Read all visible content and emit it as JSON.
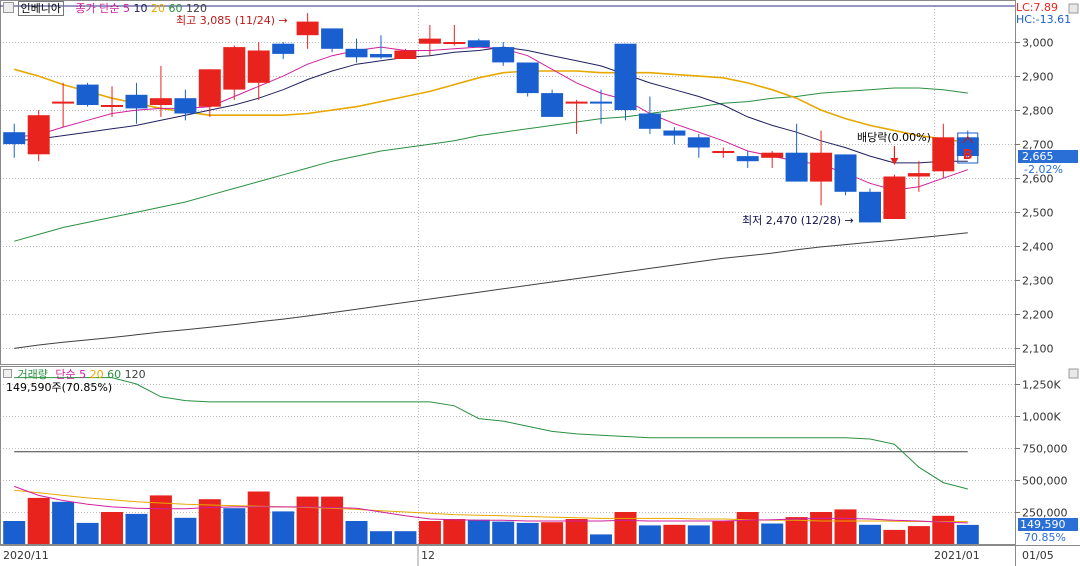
{
  "price_panel": {
    "stock_name": "인베니아",
    "indicator_label": "종가 단순",
    "ma_periods": [
      "5",
      "10",
      "20",
      "60",
      "120"
    ],
    "lc_label": "LC:7.89",
    "hc_label": "HC:-13.61",
    "current_price_label": "2,665",
    "change_pct_label": "-2.02%",
    "high_annotation": "최고 3,085 (11/24)",
    "low_annotation": "최저 2,470 (12/28)",
    "dividend_annotation": "배당락(0.00%)",
    "signal_marker": "B"
  },
  "volume_panel": {
    "indicator_label": "거래량",
    "ma_label": "단순",
    "ma_periods": [
      "5",
      "20",
      "60",
      "120"
    ],
    "summary": "149,590주(70.85%)",
    "current_volume_label": "149,590",
    "current_pct_label": "70.85%"
  },
  "date_labels": {
    "left": "2020/11",
    "mid": "12",
    "right": "2021/01",
    "last": "01/05"
  },
  "colors": {
    "up": "#e8231e",
    "down": "#1a5fcf",
    "ma5": "#d020a0",
    "ma10": "#202060",
    "ma20": "#e8a800",
    "ma60": "#2a9040",
    "ma120": "#404040",
    "price_highlight": "#2a6fd6"
  },
  "chart_data": [
    {
      "type": "candlestick",
      "y_ticks": [
        "3,000",
        "2,900",
        "2,800",
        "2,700",
        "2,600",
        "2,500",
        "2,400",
        "2,300",
        "2,200",
        "2,100"
      ],
      "ylim": [
        2060,
        3100
      ],
      "candles": [
        {
          "o": 2735,
          "h": 2760,
          "l": 2660,
          "c": 2700
        },
        {
          "o": 2670,
          "h": 2800,
          "l": 2650,
          "c": 2785
        },
        {
          "o": 2820,
          "h": 2880,
          "l": 2750,
          "c": 2825
        },
        {
          "o": 2875,
          "h": 2880,
          "l": 2810,
          "c": 2815
        },
        {
          "o": 2815,
          "h": 2870,
          "l": 2780,
          "c": 2815
        },
        {
          "o": 2845,
          "h": 2880,
          "l": 2760,
          "c": 2805
        },
        {
          "o": 2815,
          "h": 2930,
          "l": 2780,
          "c": 2835
        },
        {
          "o": 2835,
          "h": 2860,
          "l": 2770,
          "c": 2790
        },
        {
          "o": 2810,
          "h": 2920,
          "l": 2780,
          "c": 2920
        },
        {
          "o": 2860,
          "h": 2990,
          "l": 2830,
          "c": 2985
        },
        {
          "o": 2880,
          "h": 3000,
          "l": 2830,
          "c": 2975
        },
        {
          "o": 2995,
          "h": 3000,
          "l": 2950,
          "c": 2965
        },
        {
          "o": 3020,
          "h": 3085,
          "l": 2980,
          "c": 3060
        },
        {
          "o": 3040,
          "h": 3040,
          "l": 2970,
          "c": 2980
        },
        {
          "o": 2980,
          "h": 3010,
          "l": 2940,
          "c": 2955
        },
        {
          "o": 2965,
          "h": 3020,
          "l": 2950,
          "c": 2955
        },
        {
          "o": 2950,
          "h": 2980,
          "l": 2950,
          "c": 2975
        },
        {
          "o": 2995,
          "h": 3050,
          "l": 2960,
          "c": 3010
        },
        {
          "o": 3000,
          "h": 3050,
          "l": 2990,
          "c": 3000
        },
        {
          "o": 3005,
          "h": 3010,
          "l": 2985,
          "c": 2985
        },
        {
          "o": 2985,
          "h": 3000,
          "l": 2930,
          "c": 2940
        },
        {
          "o": 2940,
          "h": 2940,
          "l": 2840,
          "c": 2850
        },
        {
          "o": 2850,
          "h": 2860,
          "l": 2780,
          "c": 2780
        },
        {
          "o": 2820,
          "h": 2830,
          "l": 2730,
          "c": 2825
        },
        {
          "o": 2825,
          "h": 2860,
          "l": 2760,
          "c": 2820
        },
        {
          "o": 2995,
          "h": 2995,
          "l": 2770,
          "c": 2800
        },
        {
          "o": 2790,
          "h": 2840,
          "l": 2730,
          "c": 2745
        },
        {
          "o": 2740,
          "h": 2750,
          "l": 2700,
          "c": 2725
        },
        {
          "o": 2720,
          "h": 2730,
          "l": 2660,
          "c": 2690
        },
        {
          "o": 2680,
          "h": 2690,
          "l": 2660,
          "c": 2680
        },
        {
          "o": 2665,
          "h": 2680,
          "l": 2630,
          "c": 2650
        },
        {
          "o": 2660,
          "h": 2680,
          "l": 2630,
          "c": 2675
        },
        {
          "o": 2675,
          "h": 2760,
          "l": 2600,
          "c": 2590
        },
        {
          "o": 2590,
          "h": 2740,
          "l": 2520,
          "c": 2675
        },
        {
          "o": 2670,
          "h": 2670,
          "l": 2550,
          "c": 2560
        },
        {
          "o": 2560,
          "h": 2570,
          "l": 2470,
          "c": 2470
        },
        {
          "o": 2480,
          "h": 2610,
          "l": 2480,
          "c": 2605
        },
        {
          "o": 2605,
          "h": 2650,
          "l": 2560,
          "c": 2615
        },
        {
          "o": 2620,
          "h": 2760,
          "l": 2600,
          "c": 2720
        },
        {
          "o": 2720,
          "h": 2740,
          "l": 2660,
          "c": 2665
        }
      ],
      "ma5": [
        2720,
        2728,
        2750,
        2770,
        2790,
        2800,
        2805,
        2805,
        2810,
        2840,
        2870,
        2900,
        2935,
        2960,
        2975,
        2985,
        2975,
        2975,
        2980,
        2985,
        2980,
        2960,
        2920,
        2880,
        2850,
        2830,
        2790,
        2760,
        2735,
        2710,
        2680,
        2665,
        2650,
        2640,
        2615,
        2585,
        2565,
        2575,
        2600,
        2625
      ],
      "ma10": [
        2710,
        2715,
        2725,
        2735,
        2745,
        2755,
        2770,
        2785,
        2800,
        2815,
        2835,
        2860,
        2890,
        2915,
        2935,
        2945,
        2955,
        2960,
        2970,
        2975,
        2985,
        2975,
        2960,
        2945,
        2930,
        2905,
        2880,
        2860,
        2840,
        2815,
        2780,
        2755,
        2735,
        2710,
        2690,
        2665,
        2645,
        2645,
        2650,
        2650
      ],
      "ma20": [
        2920,
        2900,
        2875,
        2855,
        2835,
        2820,
        2805,
        2795,
        2785,
        2785,
        2785,
        2785,
        2790,
        2800,
        2810,
        2825,
        2840,
        2855,
        2875,
        2895,
        2910,
        2915,
        2915,
        2915,
        2910,
        2910,
        2910,
        2905,
        2900,
        2895,
        2880,
        2860,
        2835,
        2800,
        2775,
        2755,
        2740,
        2725,
        2715,
        2705
      ],
      "ma60": [
        2415,
        2435,
        2455,
        2470,
        2485,
        2500,
        2515,
        2530,
        2550,
        2570,
        2590,
        2610,
        2630,
        2650,
        2665,
        2680,
        2690,
        2700,
        2710,
        2725,
        2735,
        2745,
        2755,
        2765,
        2775,
        2780,
        2790,
        2800,
        2810,
        2820,
        2825,
        2835,
        2840,
        2850,
        2855,
        2860,
        2865,
        2865,
        2860,
        2850
      ],
      "ma120": [
        2100,
        2110,
        2118,
        2125,
        2132,
        2140,
        2148,
        2155,
        2162,
        2170,
        2178,
        2186,
        2195,
        2205,
        2215,
        2225,
        2235,
        2245,
        2255,
        2265,
        2275,
        2285,
        2295,
        2305,
        2315,
        2325,
        2335,
        2345,
        2355,
        2365,
        2372,
        2380,
        2390,
        2398,
        2405,
        2412,
        2418,
        2425,
        2432,
        2440
      ]
    },
    {
      "type": "bar",
      "y_ticks": [
        "1,250K",
        "1,000K",
        "750,000",
        "500,000",
        "250,000"
      ],
      "ylim": [
        0,
        1375000
      ],
      "volumes": [
        180000,
        360000,
        330000,
        165000,
        250000,
        235000,
        380000,
        205000,
        350000,
        280000,
        410000,
        255000,
        370000,
        370000,
        180000,
        100000,
        100000,
        180000,
        195000,
        190000,
        175000,
        165000,
        170000,
        195000,
        75000,
        250000,
        145000,
        150000,
        145000,
        180000,
        250000,
        160000,
        210000,
        250000,
        270000,
        150000,
        110000,
        140000,
        220000,
        149590
      ],
      "up": [
        false,
        true,
        false,
        false,
        true,
        false,
        true,
        false,
        true,
        false,
        true,
        false,
        true,
        true,
        false,
        false,
        false,
        true,
        true,
        false,
        false,
        false,
        true,
        true,
        false,
        true,
        false,
        true,
        false,
        true,
        true,
        false,
        true,
        true,
        true,
        false,
        true,
        true,
        true,
        false
      ],
      "ma5": [
        450000,
        380000,
        340000,
        310000,
        290000,
        280000,
        275000,
        275000,
        285000,
        290000,
        290000,
        290000,
        290000,
        285000,
        280000,
        250000,
        220000,
        195000,
        190000,
        185000,
        185000,
        180000,
        180000,
        180000,
        180000,
        185000,
        180000,
        180000,
        180000,
        180000,
        185000,
        190000,
        195000,
        200000,
        200000,
        195000,
        185000,
        180000,
        170000,
        165000
      ],
      "ma20": [
        420000,
        400000,
        380000,
        360000,
        345000,
        330000,
        320000,
        310000,
        305000,
        300000,
        295000,
        290000,
        285000,
        280000,
        270000,
        260000,
        250000,
        240000,
        230000,
        225000,
        220000,
        215000,
        210000,
        205000,
        200000,
        200000,
        200000,
        200000,
        195000,
        195000,
        190000,
        185000,
        185000,
        180000,
        180000,
        180000,
        178000,
        176000,
        175000,
        175000
      ],
      "ma60": [
        1300000,
        1300000,
        1300000,
        1300000,
        1300000,
        1250000,
        1150000,
        1120000,
        1110000,
        1110000,
        1110000,
        1110000,
        1110000,
        1110000,
        1110000,
        1110000,
        1110000,
        1110000,
        1080000,
        980000,
        960000,
        920000,
        880000,
        860000,
        850000,
        840000,
        830000,
        830000,
        830000,
        830000,
        830000,
        830000,
        830000,
        830000,
        830000,
        820000,
        780000,
        600000,
        480000,
        430000
      ],
      "ma120": [
        720000,
        720000,
        720000,
        720000,
        720000,
        720000,
        720000,
        720000,
        720000,
        720000,
        720000,
        720000,
        720000,
        720000,
        720000,
        720000,
        720000,
        720000,
        720000,
        720000,
        720000,
        720000,
        720000,
        720000,
        720000,
        720000,
        720000,
        720000,
        720000,
        720000,
        720000,
        720000,
        720000,
        720000,
        720000,
        720000,
        720000,
        720000,
        720000,
        720000
      ]
    }
  ]
}
